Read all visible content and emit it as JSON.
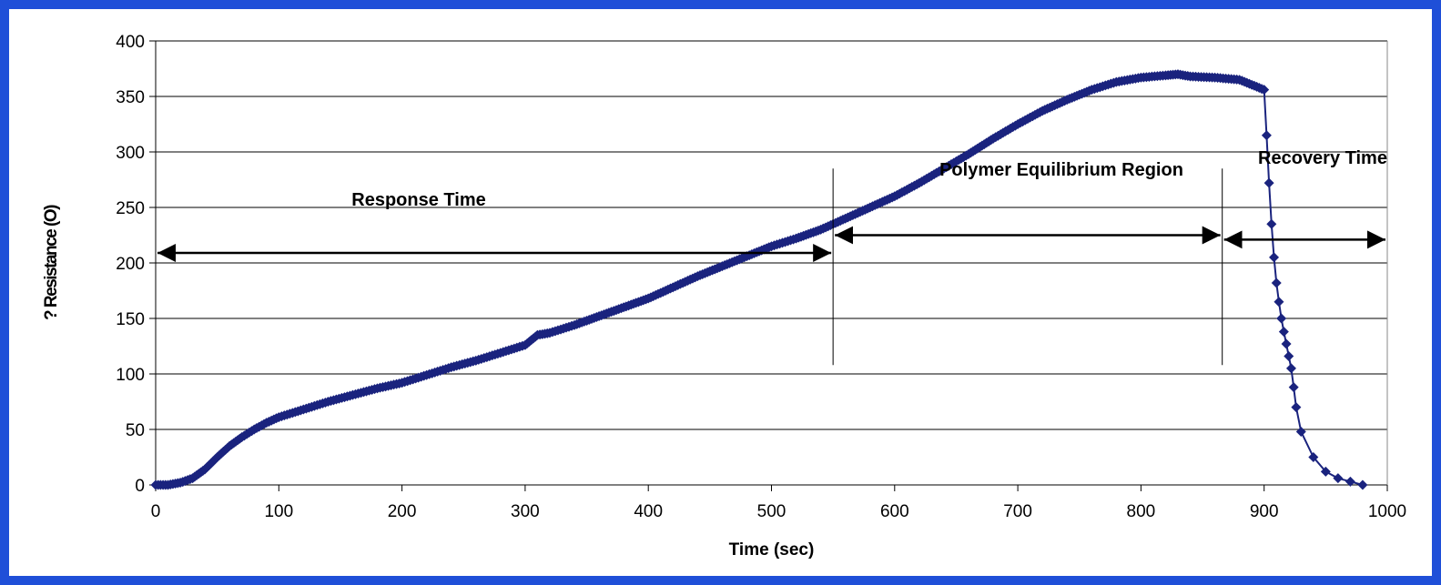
{
  "chart_data": {
    "type": "scatter",
    "title": "",
    "xlabel": "Time (sec)",
    "ylabel": "? Resistance (O)",
    "xlim": [
      0,
      1000
    ],
    "ylim": [
      0,
      400
    ],
    "x_ticks": [
      "0",
      "100",
      "200",
      "300",
      "400",
      "500",
      "600",
      "700",
      "800",
      "900",
      "1000"
    ],
    "y_ticks": [
      "0",
      "50",
      "100",
      "150",
      "200",
      "250",
      "300",
      "350",
      "400"
    ],
    "grid": "horizontal",
    "legend": "none",
    "series": [
      {
        "color": "#1a237e",
        "marker": "diamond",
        "x": [
          0,
          10,
          20,
          30,
          40,
          50,
          60,
          70,
          80,
          90,
          100,
          120,
          140,
          160,
          180,
          200,
          220,
          240,
          260,
          280,
          300,
          310,
          320,
          340,
          360,
          380,
          400,
          420,
          440,
          460,
          480,
          500,
          520,
          540,
          560,
          580,
          600,
          620,
          640,
          660,
          680,
          700,
          720,
          740,
          760,
          780,
          800,
          820,
          830,
          840,
          860,
          880,
          900,
          902,
          904,
          906,
          908,
          910,
          912,
          914,
          916,
          918,
          920,
          922,
          924,
          926,
          930,
          940,
          950,
          960,
          970,
          980
        ],
        "y": [
          0,
          0,
          2,
          6,
          14,
          25,
          35,
          43,
          50,
          56,
          61,
          68,
          75,
          81,
          87,
          92,
          99,
          106,
          112,
          119,
          126,
          135,
          137,
          144,
          152,
          160,
          168,
          178,
          188,
          197,
          206,
          215,
          222,
          230,
          240,
          250,
          260,
          272,
          285,
          298,
          312,
          325,
          337,
          347,
          356,
          363,
          367,
          369,
          370,
          368,
          367,
          365,
          356,
          315,
          272,
          235,
          205,
          182,
          165,
          150,
          138,
          127,
          116,
          105,
          88,
          70,
          48,
          25,
          12,
          6,
          3,
          0
        ]
      }
    ],
    "annotations": [
      {
        "text": "Response Time",
        "x_start": 0,
        "x_end": 550,
        "y": 209
      },
      {
        "text": "Polymer Equilibrium Region",
        "x_start": 550,
        "x_end": 866,
        "y": 225
      },
      {
        "text": "Recovery Time",
        "x_start": 866,
        "x_end": 1000,
        "y": 221
      }
    ],
    "dividers": [
      {
        "x": 550,
        "y_from": 108,
        "y_to": 285
      },
      {
        "x": 866,
        "y_from": 108,
        "y_to": 285
      }
    ]
  }
}
